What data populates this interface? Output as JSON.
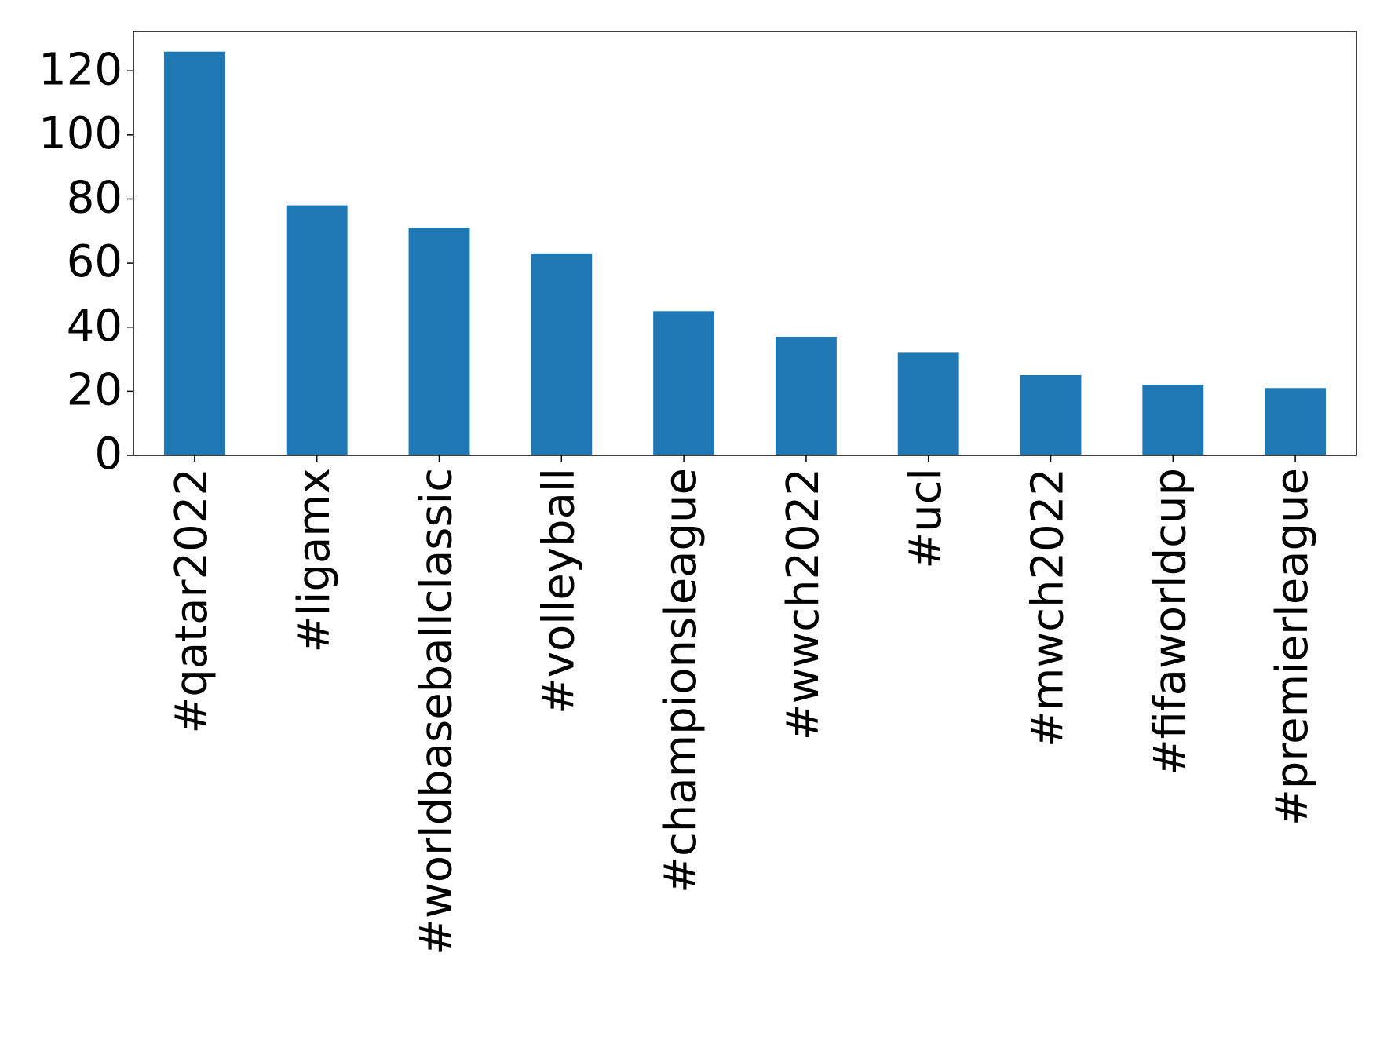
{
  "chart_data": {
    "type": "bar",
    "categories": [
      "#qatar2022",
      "#ligamx",
      "#worldbaseballclassic",
      "#volleyball",
      "#championsleague",
      "#wwch2022",
      "#ucl",
      "#mwch2022",
      "#fifaworldcup",
      "#premierleague"
    ],
    "values": [
      126,
      78,
      71,
      63,
      45,
      37,
      32,
      25,
      22,
      21
    ],
    "color": "#1f77b4",
    "ylim": [
      0,
      132.3
    ],
    "yticks": [
      0,
      20,
      40,
      60,
      80,
      100,
      120
    ],
    "grid": false
  }
}
